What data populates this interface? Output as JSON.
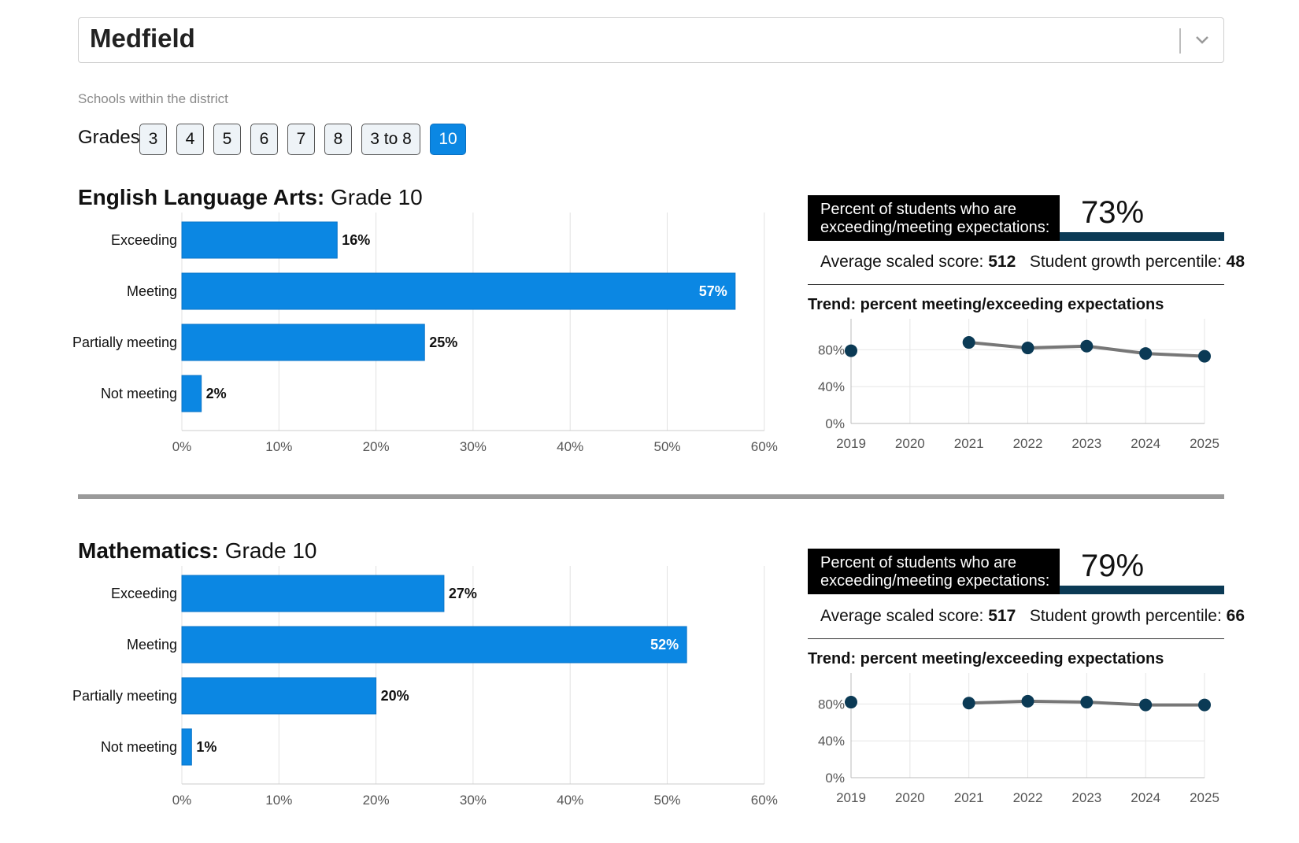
{
  "district": {
    "name": "Medfield"
  },
  "schools_caption": "Schools within the district",
  "grades": {
    "label": "Grades:",
    "options": [
      "3",
      "4",
      "5",
      "6",
      "7",
      "8",
      "3 to 8",
      "10"
    ],
    "selected": "10"
  },
  "sections": [
    {
      "subject": "English Language Arts:",
      "grade": "Grade 10",
      "percent_label": "Percent of students who are exceeding/meeting expectations:",
      "percent_value": "73%",
      "avg_label": "Average scaled score:",
      "avg_value": "512",
      "growth_label": "Student growth percentile:",
      "growth_value": "48",
      "trend_title": "Trend: percent meeting/exceeding expectations"
    },
    {
      "subject": "Mathematics:",
      "grade": "Grade 10",
      "percent_label": "Percent of students who are exceeding/meeting expectations:",
      "percent_value": "79%",
      "avg_label": "Average scaled score:",
      "avg_value": "517",
      "growth_label": "Student growth percentile:",
      "growth_value": "66",
      "trend_title": "Trend: percent meeting/exceeding expectations"
    }
  ],
  "chart_data": [
    {
      "type": "bar",
      "orientation": "horizontal",
      "categories": [
        "Exceeding",
        "Meeting",
        "Partially meeting",
        "Not meeting"
      ],
      "values": [
        16,
        57,
        25,
        2
      ],
      "value_labels": [
        "16%",
        "57%",
        "25%",
        "2%"
      ],
      "xlim": [
        0,
        60
      ],
      "xticks": [
        "0%",
        "10%",
        "20%",
        "30%",
        "40%",
        "50%",
        "60%"
      ],
      "grid": true,
      "color": "#0b87e3"
    },
    {
      "type": "line",
      "title": "Trend: percent meeting/exceeding expectations",
      "x": [
        "2019",
        "2020",
        "2021",
        "2022",
        "2023",
        "2024",
        "2025"
      ],
      "values": [
        79,
        null,
        88,
        82,
        84,
        76,
        73
      ],
      "ylim": [
        0,
        100
      ],
      "yticks": [
        "0%",
        "40%",
        "80%"
      ],
      "ytick_values": [
        0,
        40,
        80
      ],
      "grid": true,
      "line_color": "#777777",
      "point_color": "#0b3a55"
    },
    {
      "type": "bar",
      "orientation": "horizontal",
      "categories": [
        "Exceeding",
        "Meeting",
        "Partially meeting",
        "Not meeting"
      ],
      "values": [
        27,
        52,
        20,
        1
      ],
      "value_labels": [
        "27%",
        "52%",
        "20%",
        "1%"
      ],
      "xlim": [
        0,
        60
      ],
      "xticks": [
        "0%",
        "10%",
        "20%",
        "30%",
        "40%",
        "50%",
        "60%"
      ],
      "grid": true,
      "color": "#0b87e3"
    },
    {
      "type": "line",
      "title": "Trend: percent meeting/exceeding expectations",
      "x": [
        "2019",
        "2020",
        "2021",
        "2022",
        "2023",
        "2024",
        "2025"
      ],
      "values": [
        82,
        null,
        81,
        83,
        82,
        79,
        79
      ],
      "ylim": [
        0,
        100
      ],
      "yticks": [
        "0%",
        "40%",
        "80%"
      ],
      "ytick_values": [
        0,
        40,
        80
      ],
      "grid": true,
      "line_color": "#777777",
      "point_color": "#0b3a55"
    }
  ]
}
